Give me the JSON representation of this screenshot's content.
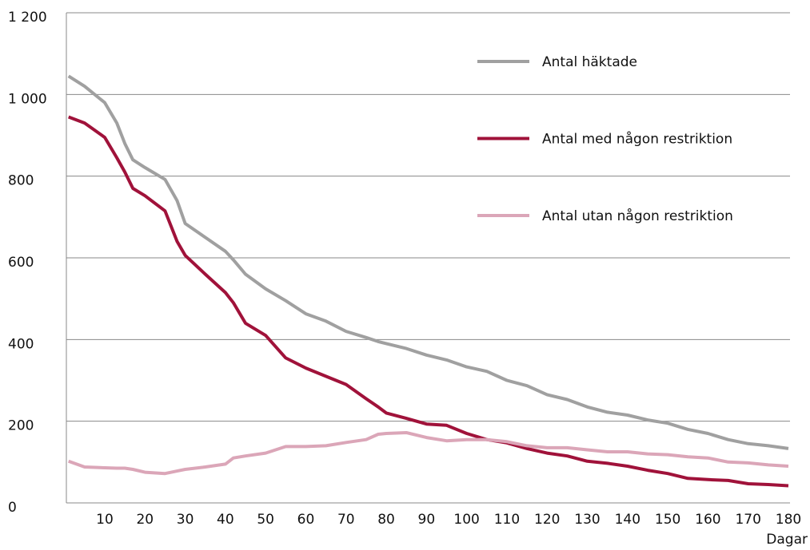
{
  "chart_data": {
    "type": "line",
    "x_label": "Dagar",
    "x": [
      1,
      5,
      10,
      13,
      15,
      17,
      20,
      25,
      28,
      30,
      35,
      40,
      42,
      45,
      50,
      55,
      60,
      65,
      70,
      75,
      78,
      80,
      85,
      90,
      95,
      100,
      105,
      110,
      115,
      120,
      125,
      130,
      135,
      140,
      145,
      150,
      155,
      160,
      165,
      170,
      175,
      180
    ],
    "series": [
      {
        "name": "Antal häktade",
        "color": "#a0a0a0",
        "values": [
          1045,
          1020,
          980,
          930,
          880,
          840,
          821,
          792,
          740,
          684,
          650,
          616,
          595,
          560,
          524,
          495,
          463,
          445,
          420,
          405,
          395,
          390,
          378,
          362,
          350,
          333,
          322,
          300,
          287,
          265,
          253,
          235,
          222,
          215,
          203,
          195,
          180,
          170,
          155,
          145,
          140,
          133
        ]
      },
      {
        "name": "Antal med någon restriktion",
        "color": "#a0123a",
        "values": [
          945,
          930,
          895,
          845,
          810,
          770,
          752,
          715,
          640,
          606,
          560,
          515,
          490,
          440,
          410,
          355,
          330,
          310,
          290,
          255,
          235,
          220,
          207,
          193,
          190,
          170,
          155,
          147,
          133,
          122,
          115,
          102,
          97,
          90,
          80,
          72,
          60,
          57,
          55,
          47,
          45,
          42
        ]
      },
      {
        "name": "Antal utan någon restriktion",
        "color": "#dba6b8",
        "values": [
          102,
          88,
          86,
          85,
          85,
          82,
          75,
          72,
          78,
          82,
          88,
          95,
          110,
          115,
          122,
          138,
          138,
          140,
          148,
          155,
          168,
          170,
          172,
          160,
          152,
          155,
          155,
          150,
          140,
          135,
          135,
          130,
          125,
          125,
          120,
          118,
          113,
          110,
          100,
          98,
          93,
          90
        ]
      }
    ],
    "xlim": [
      0,
      180
    ],
    "xticks": [
      10,
      20,
      30,
      40,
      50,
      60,
      70,
      80,
      90,
      100,
      110,
      120,
      130,
      140,
      150,
      160,
      170,
      180
    ],
    "ylim": [
      0,
      1200
    ],
    "yticks": [
      0,
      200,
      400,
      600,
      800,
      {
        "value": 1000,
        "label": "1 000"
      },
      {
        "value": 1200,
        "label": "1 200"
      }
    ],
    "grid": true,
    "legend": "upper right"
  }
}
